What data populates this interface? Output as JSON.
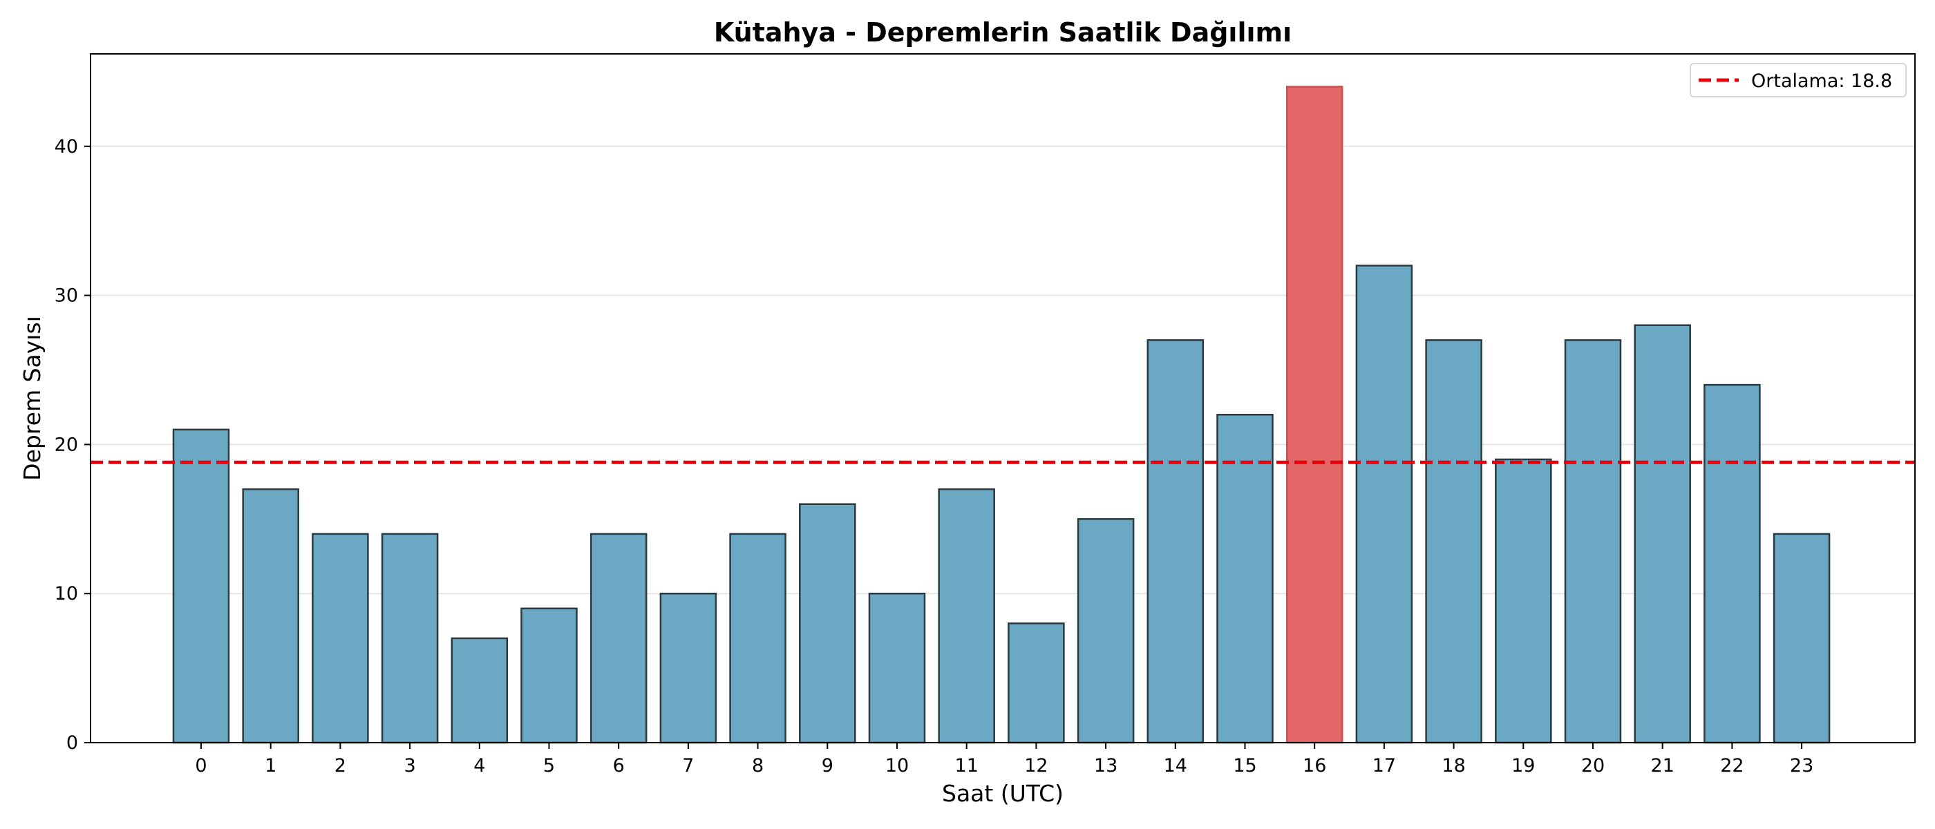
{
  "chart_data": {
    "type": "bar",
    "title": "Kütahya - Depremlerin Saatlik Dağılımı",
    "xlabel": "Saat (UTC)",
    "ylabel": "Deprem Sayısı",
    "categories": [
      "0",
      "1",
      "2",
      "3",
      "4",
      "5",
      "6",
      "7",
      "8",
      "9",
      "10",
      "11",
      "12",
      "13",
      "14",
      "15",
      "16",
      "17",
      "18",
      "19",
      "20",
      "21",
      "22",
      "23"
    ],
    "values": [
      21,
      17,
      14,
      14,
      7,
      9,
      14,
      10,
      14,
      16,
      10,
      17,
      8,
      15,
      27,
      22,
      44,
      32,
      27,
      19,
      27,
      28,
      24,
      14
    ],
    "highlight_index": 16,
    "ylim": [
      0,
      46.2
    ],
    "yticks": [
      0,
      10,
      20,
      30,
      40
    ],
    "grid": "horizontal",
    "mean_line": {
      "value": 18.8,
      "label": "Ortalama: 18.8",
      "color": "#e8000b",
      "style": "dashed"
    },
    "legend": {
      "placement": "top-right",
      "entries": [
        "Ortalama: 18.8"
      ]
    },
    "colors": {
      "bar": "#6aa8c4",
      "bar_highlight": "#e26666",
      "bar_edge": "#2a3a40",
      "highlight_edge": "#c85050"
    }
  }
}
